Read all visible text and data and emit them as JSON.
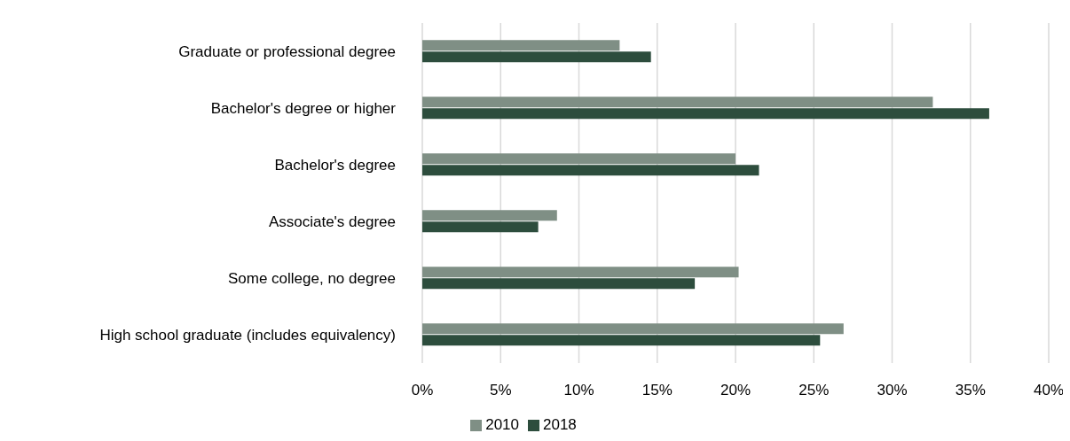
{
  "chart_data": {
    "type": "bar",
    "orientation": "horizontal",
    "categories": [
      "Graduate or professional degree",
      "Bachelor's degree or higher",
      "Bachelor's degree",
      "Associate's degree",
      "Some college, no degree",
      "High school graduate (includes equivalency)"
    ],
    "series": [
      {
        "name": "2010",
        "color": "#7f8f85",
        "values": [
          12.6,
          32.6,
          20.0,
          8.6,
          20.2,
          26.9
        ]
      },
      {
        "name": "2018",
        "color": "#2d4d3d",
        "values": [
          14.6,
          36.2,
          21.5,
          7.4,
          17.4,
          25.4
        ]
      }
    ],
    "xlim": [
      0,
      40
    ],
    "xticks": [
      {
        "value": 0,
        "label": "0%"
      },
      {
        "value": 5,
        "label": "5%"
      },
      {
        "value": 10,
        "label": "10%"
      },
      {
        "value": 15,
        "label": "15%"
      },
      {
        "value": 20,
        "label": "20%"
      },
      {
        "value": 25,
        "label": "25%"
      },
      {
        "value": 30,
        "label": "30%"
      },
      {
        "value": 35,
        "label": "35%"
      },
      {
        "value": 40,
        "label": "40%"
      }
    ],
    "grid": "x",
    "legend": "bottom"
  }
}
